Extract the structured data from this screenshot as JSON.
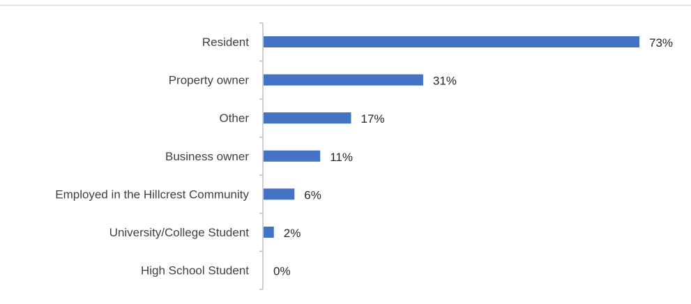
{
  "chart_data": {
    "type": "bar",
    "orientation": "horizontal",
    "categories": [
      "Resident",
      "Property owner",
      "Other",
      "Business owner",
      "Employed in the Hillcrest Community",
      "University/College Student",
      "High School Student"
    ],
    "values": [
      73,
      31,
      17,
      11,
      6,
      2,
      0
    ],
    "value_labels": [
      "73%",
      "31%",
      "17%",
      "11%",
      "6%",
      "2%",
      "0%"
    ],
    "unit": "%",
    "xlim": [
      0,
      73
    ],
    "grid": false,
    "legend": "none",
    "title": "",
    "xlabel": "",
    "ylabel": "",
    "colors": {
      "bar": "#4472C4",
      "axis": "#BFBFBF",
      "top_rule": "#D9D9D9",
      "category_text": "#404040",
      "value_text": "#262626"
    }
  }
}
